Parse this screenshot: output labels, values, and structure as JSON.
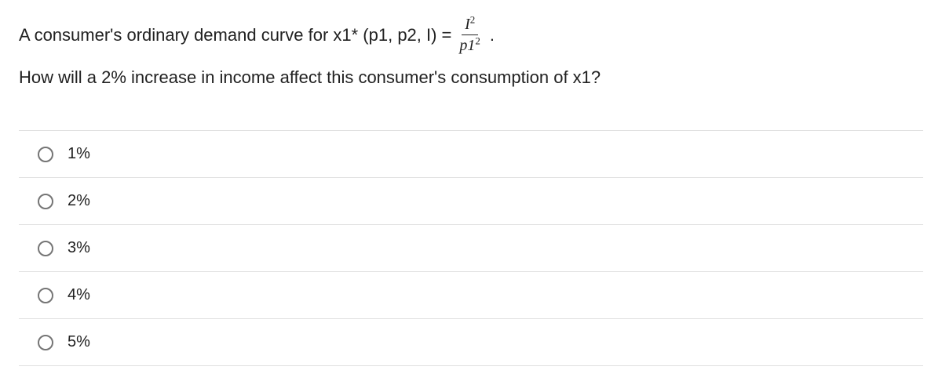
{
  "question": {
    "line1_prefix": "A consumer's ordinary demand curve for x1* (p1, p2, I) = ",
    "fraction_num_base": "I",
    "fraction_num_exp": "2",
    "fraction_den_base": "p1",
    "fraction_den_exp": "2",
    "line1_suffix": ".",
    "line2": "How will a 2% increase in income affect this consumer's consumption of x1?"
  },
  "options": [
    {
      "label": "1%"
    },
    {
      "label": "2%"
    },
    {
      "label": "3%"
    },
    {
      "label": "4%"
    },
    {
      "label": "5%"
    }
  ],
  "style": {
    "text_color": "#212121",
    "border_color": "#e0e0e0",
    "radio_border": "#757575",
    "background": "#ffffff"
  }
}
